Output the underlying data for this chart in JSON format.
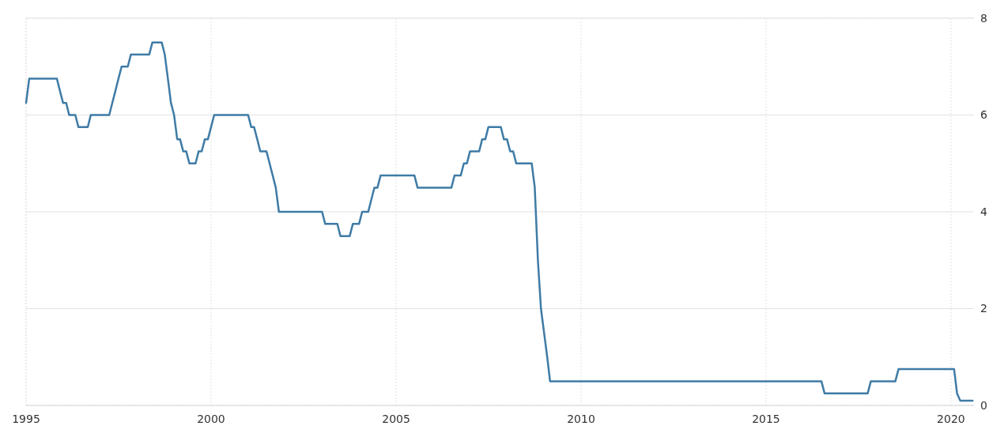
{
  "chart_data": {
    "type": "line",
    "x": [
      "1995-01",
      "1995-02",
      "1995-11",
      "1995-12",
      "1996-01",
      "1996-02",
      "1996-03",
      "1996-05",
      "1996-06",
      "1996-09",
      "1996-10",
      "1997-04",
      "1997-05",
      "1997-06",
      "1997-07",
      "1997-08",
      "1997-10",
      "1997-11",
      "1998-05",
      "1998-06",
      "1998-09",
      "1998-10",
      "1998-11",
      "1998-12",
      "1999-01",
      "1999-02",
      "1999-03",
      "1999-04",
      "1999-05",
      "1999-06",
      "1999-08",
      "1999-09",
      "1999-10",
      "1999-11",
      "1999-12",
      "2000-01",
      "2000-02",
      "2001-01",
      "2001-02",
      "2001-03",
      "2001-04",
      "2001-05",
      "2001-07",
      "2001-08",
      "2001-09",
      "2001-10",
      "2001-11",
      "2003-01",
      "2003-02",
      "2003-06",
      "2003-07",
      "2003-10",
      "2003-11",
      "2004-01",
      "2004-02",
      "2004-04",
      "2004-05",
      "2004-06",
      "2004-07",
      "2004-08",
      "2005-07",
      "2005-08",
      "2006-07",
      "2006-08",
      "2006-10",
      "2006-11",
      "2006-12",
      "2007-01",
      "2007-04",
      "2007-05",
      "2007-06",
      "2007-07",
      "2007-11",
      "2007-12",
      "2008-01",
      "2008-02",
      "2008-03",
      "2008-04",
      "2008-09",
      "2008-10",
      "2008-11",
      "2008-12",
      "2009-01",
      "2009-02",
      "2009-03",
      "2016-07",
      "2016-08",
      "2017-10",
      "2017-11",
      "2018-07",
      "2018-08",
      "2020-02",
      "2020-03",
      "2020-04",
      "2020-08"
    ],
    "series": [
      {
        "color": "#3f7ba6",
        "values": [
          6.25,
          6.75,
          6.75,
          6.5,
          6.25,
          6.25,
          6.0,
          6.0,
          5.75,
          5.75,
          6.0,
          6.0,
          6.25,
          6.5,
          6.75,
          7.0,
          7.0,
          7.25,
          7.25,
          7.5,
          7.5,
          7.25,
          6.75,
          6.25,
          6.0,
          5.5,
          5.5,
          5.25,
          5.25,
          5.0,
          5.0,
          5.25,
          5.25,
          5.5,
          5.5,
          5.75,
          6.0,
          6.0,
          5.75,
          5.75,
          5.5,
          5.25,
          5.25,
          5.0,
          4.75,
          4.5,
          4.0,
          4.0,
          3.75,
          3.75,
          3.5,
          3.5,
          3.75,
          3.75,
          4.0,
          4.0,
          4.25,
          4.5,
          4.5,
          4.75,
          4.75,
          4.5,
          4.5,
          4.75,
          4.75,
          5.0,
          5.0,
          5.25,
          5.25,
          5.5,
          5.5,
          5.75,
          5.75,
          5.5,
          5.5,
          5.25,
          5.25,
          5.0,
          5.0,
          4.5,
          3.0,
          2.0,
          1.5,
          1.0,
          0.5,
          0.5,
          0.25,
          0.25,
          0.5,
          0.5,
          0.75,
          0.75,
          0.25,
          0.1,
          0.1
        ]
      }
    ],
    "xlim": [
      "1995-01-01",
      "2020-08-15"
    ],
    "xticks": [
      {
        "value": "1995-01-01",
        "label": "1995"
      },
      {
        "value": "2000-01-01",
        "label": "2000"
      },
      {
        "value": "2005-01-01",
        "label": "2005"
      },
      {
        "value": "2010-01-01",
        "label": "2010"
      },
      {
        "value": "2015-01-01",
        "label": "2015"
      },
      {
        "value": "2020-01-01",
        "label": "2020"
      }
    ],
    "ylim": [
      0,
      8
    ],
    "yticks": [
      0,
      2,
      4,
      6,
      8
    ],
    "grid": true,
    "marker": "none",
    "line_style": "solid"
  }
}
